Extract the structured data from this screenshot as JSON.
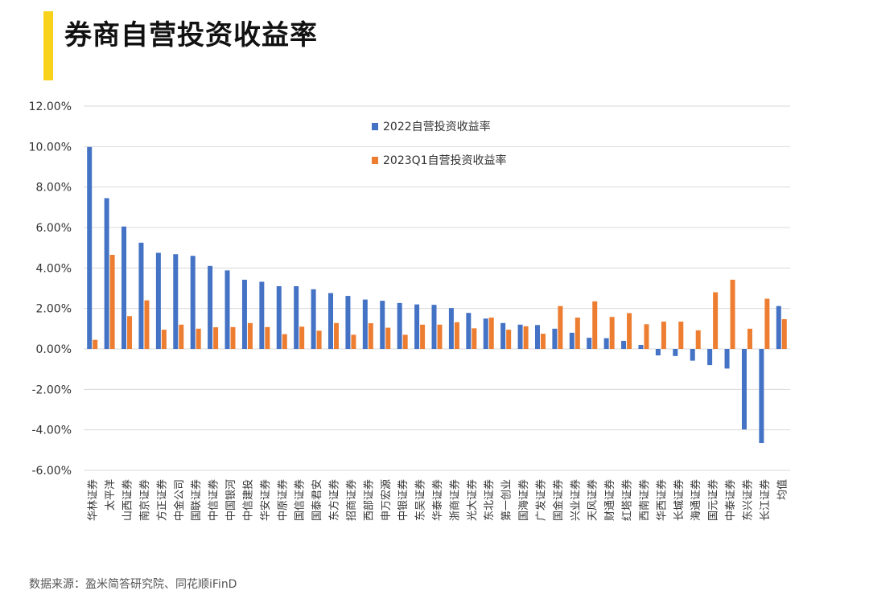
{
  "header": {
    "title": "券商自营投资收益率"
  },
  "footer": {
    "source": "数据来源：盈米简答研究院、同花顺iFinD"
  },
  "colors": {
    "accent": "#f9d21b",
    "series_2022": "#4472c4",
    "series_2023q1": "#ed7d31",
    "grid": "#d9d9d9"
  },
  "chart_data": {
    "type": "bar",
    "ylim": [
      -6,
      12
    ],
    "ytick_step": 2,
    "yticks": [
      "12.00%",
      "10.00%",
      "8.00%",
      "6.00%",
      "4.00%",
      "2.00%",
      "0.00%",
      "-2.00%",
      "-4.00%",
      "-6.00%"
    ],
    "grid": true,
    "legend_position": "top-center",
    "categories": [
      "华林证券",
      "太平洋",
      "山西证券",
      "南京证券",
      "方正证券",
      "中金公司",
      "国联证券",
      "中信证券",
      "中国银河",
      "中信建投",
      "华安证券",
      "中原证券",
      "国信证券",
      "国泰君安",
      "东方证券",
      "招商证券",
      "西部证券",
      "申万宏源",
      "中银证券",
      "东吴证券",
      "华泰证券",
      "浙商证券",
      "光大证券",
      "东北证券",
      "第一创业",
      "国海证券",
      "广发证券",
      "国金证券",
      "兴业证券",
      "天风证券",
      "财通证券",
      "红塔证券",
      "西南证券",
      "华西证券",
      "长城证券",
      "海通证券",
      "国元证券",
      "中泰证券",
      "东兴证券",
      "长江证券",
      "均值"
    ],
    "series": [
      {
        "name": "2022自营投资收益率",
        "color": "#4472c4",
        "values": [
          9.98,
          7.45,
          6.05,
          5.25,
          4.75,
          4.68,
          4.6,
          4.1,
          3.88,
          3.42,
          3.32,
          3.1,
          3.1,
          2.95,
          2.76,
          2.62,
          2.44,
          2.38,
          2.27,
          2.2,
          2.18,
          2.02,
          1.78,
          1.5,
          1.28,
          1.2,
          1.18,
          1.0,
          0.8,
          0.55,
          0.53,
          0.4,
          0.2,
          -0.32,
          -0.35,
          -0.58,
          -0.8,
          -0.97,
          -3.98,
          -4.65,
          2.12
        ]
      },
      {
        "name": "2023Q1自营投资收益率",
        "color": "#ed7d31",
        "values": [
          0.45,
          4.65,
          1.62,
          2.4,
          0.95,
          1.2,
          1.0,
          1.07,
          1.08,
          1.28,
          1.08,
          0.73,
          1.1,
          0.9,
          1.28,
          0.7,
          1.27,
          1.05,
          0.7,
          1.2,
          1.2,
          1.32,
          1.02,
          1.55,
          0.95,
          1.12,
          0.75,
          2.12,
          1.55,
          2.35,
          1.58,
          1.77,
          1.22,
          1.35,
          1.35,
          0.92,
          2.8,
          3.42,
          1.0,
          2.48,
          1.47
        ]
      }
    ]
  }
}
